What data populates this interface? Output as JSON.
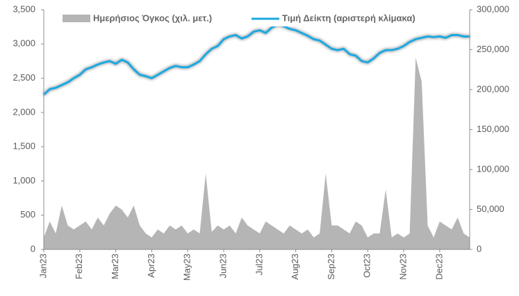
{
  "chart_data": {
    "type": "line",
    "categories": [
      "Jan23",
      null,
      null,
      null,
      null,
      null,
      "Feb23",
      null,
      null,
      null,
      null,
      null,
      "Mar23",
      null,
      null,
      null,
      null,
      null,
      "Apr23",
      null,
      null,
      null,
      null,
      null,
      "May23",
      null,
      null,
      null,
      null,
      null,
      "Jun23",
      null,
      null,
      null,
      null,
      null,
      "Jul23",
      null,
      null,
      null,
      null,
      null,
      "Aug23",
      null,
      null,
      null,
      null,
      null,
      "Sep23",
      null,
      null,
      null,
      null,
      null,
      "Oct23",
      null,
      null,
      null,
      null,
      null,
      "Nov23",
      null,
      null,
      null,
      null,
      null,
      "Dec23",
      null,
      null,
      null,
      null,
      null
    ],
    "series": [
      {
        "name": "Ημερήσιος Όγκος (χιλ. μετ.)",
        "type": "area",
        "axis": "y2",
        "color": "#b5b5b5",
        "values": [
          15000,
          35000,
          20000,
          55000,
          30000,
          25000,
          30000,
          35000,
          25000,
          40000,
          30000,
          45000,
          55000,
          50000,
          40000,
          55000,
          30000,
          20000,
          15000,
          25000,
          20000,
          30000,
          25000,
          30000,
          20000,
          25000,
          20000,
          95000,
          22000,
          30000,
          25000,
          30000,
          20000,
          40000,
          30000,
          25000,
          20000,
          35000,
          30000,
          25000,
          20000,
          30000,
          25000,
          20000,
          25000,
          15000,
          20000,
          95000,
          30000,
          30000,
          25000,
          20000,
          35000,
          30000,
          15000,
          20000,
          20000,
          75000,
          15000,
          20000,
          15000,
          20000,
          240000,
          210000,
          30000,
          15000,
          35000,
          30000,
          25000,
          40000,
          20000,
          15000
        ]
      },
      {
        "name": "Τιμή Δείκτη (αριστερή κλίμακα)",
        "type": "line",
        "axis": "y",
        "color": "#1ba8e0",
        "values": [
          2260,
          2340,
          2360,
          2400,
          2440,
          2500,
          2550,
          2630,
          2660,
          2700,
          2730,
          2750,
          2710,
          2770,
          2730,
          2630,
          2550,
          2530,
          2500,
          2550,
          2600,
          2650,
          2680,
          2660,
          2660,
          2700,
          2750,
          2850,
          2930,
          2970,
          3070,
          3110,
          3130,
          3080,
          3110,
          3180,
          3200,
          3160,
          3240,
          3280,
          3260,
          3220,
          3200,
          3160,
          3120,
          3070,
          3050,
          2990,
          2930,
          2910,
          2930,
          2850,
          2830,
          2750,
          2730,
          2790,
          2870,
          2910,
          2910,
          2930,
          2970,
          3030,
          3070,
          3090,
          3110,
          3100,
          3110,
          3090,
          3130,
          3130,
          3110,
          3110
        ]
      }
    ],
    "ylim": [
      0,
      3500
    ],
    "yticks": [
      0,
      500,
      {
        "value": 1000,
        "label": "1,000"
      },
      {
        "value": 1500,
        "label": "1,500"
      },
      {
        "value": 2000,
        "label": "2,000"
      },
      {
        "value": 2500,
        "label": "2,500"
      },
      {
        "value": 3000,
        "label": "3,000"
      },
      {
        "value": 3500,
        "label": "3,500"
      }
    ],
    "y2lim": [
      0,
      300000
    ],
    "y2ticks": [
      0,
      {
        "value": 50000,
        "label": "50,000"
      },
      {
        "value": 100000,
        "label": "100,000"
      },
      {
        "value": 150000,
        "label": "150,000"
      },
      {
        "value": 200000,
        "label": "200,000"
      },
      {
        "value": 250000,
        "label": "250,000"
      },
      {
        "value": 300000,
        "label": "300,000"
      }
    ],
    "legend": "top"
  }
}
